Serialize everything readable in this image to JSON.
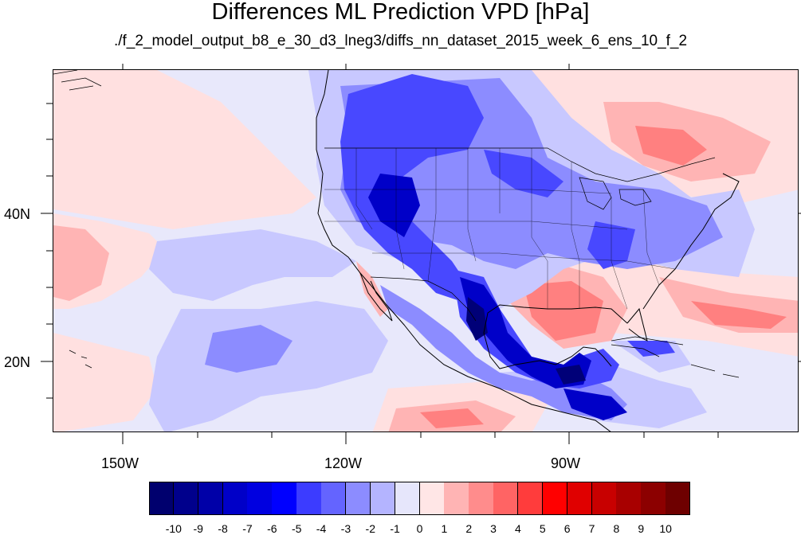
{
  "title": "Differences ML Prediction VPD [hPa]",
  "subtitle": "./f_2_model_output_b8_e_30_d3_lneg3/diffs_nn_dataset_2015_week_6_ens_10_f_2",
  "map": {
    "type": "contour-map",
    "region": "North America",
    "lon_range": [
      -159,
      -59
    ],
    "lat_range": [
      11,
      60
    ],
    "lon_ticks": [
      {
        "value": -150,
        "label": "150W"
      },
      {
        "value": -120,
        "label": "120W"
      },
      {
        "value": -90,
        "label": "90W"
      }
    ],
    "lat_ticks": [
      {
        "value": 40,
        "label": "40N"
      },
      {
        "value": 20,
        "label": "20N"
      }
    ]
  },
  "colorbar": {
    "labels": [
      "-10",
      "-9",
      "-8",
      "-7",
      "-6",
      "-5",
      "-4",
      "-3",
      "-2",
      "-1",
      "0",
      "1",
      "2",
      "3",
      "4",
      "5",
      "6",
      "7",
      "8",
      "9",
      "10"
    ],
    "colors": [
      "#00006e",
      "#00008c",
      "#0000a8",
      "#0000c8",
      "#0000e0",
      "#0000ff",
      "#3c3cff",
      "#6464ff",
      "#8c8cff",
      "#b4b4ff",
      "#e6e6fb",
      "#ffe6e6",
      "#ffb4b4",
      "#ff8c8c",
      "#ff6464",
      "#ff3c3c",
      "#ff0000",
      "#e00000",
      "#c80000",
      "#a80000",
      "#8c0000",
      "#6e0000"
    ]
  }
}
